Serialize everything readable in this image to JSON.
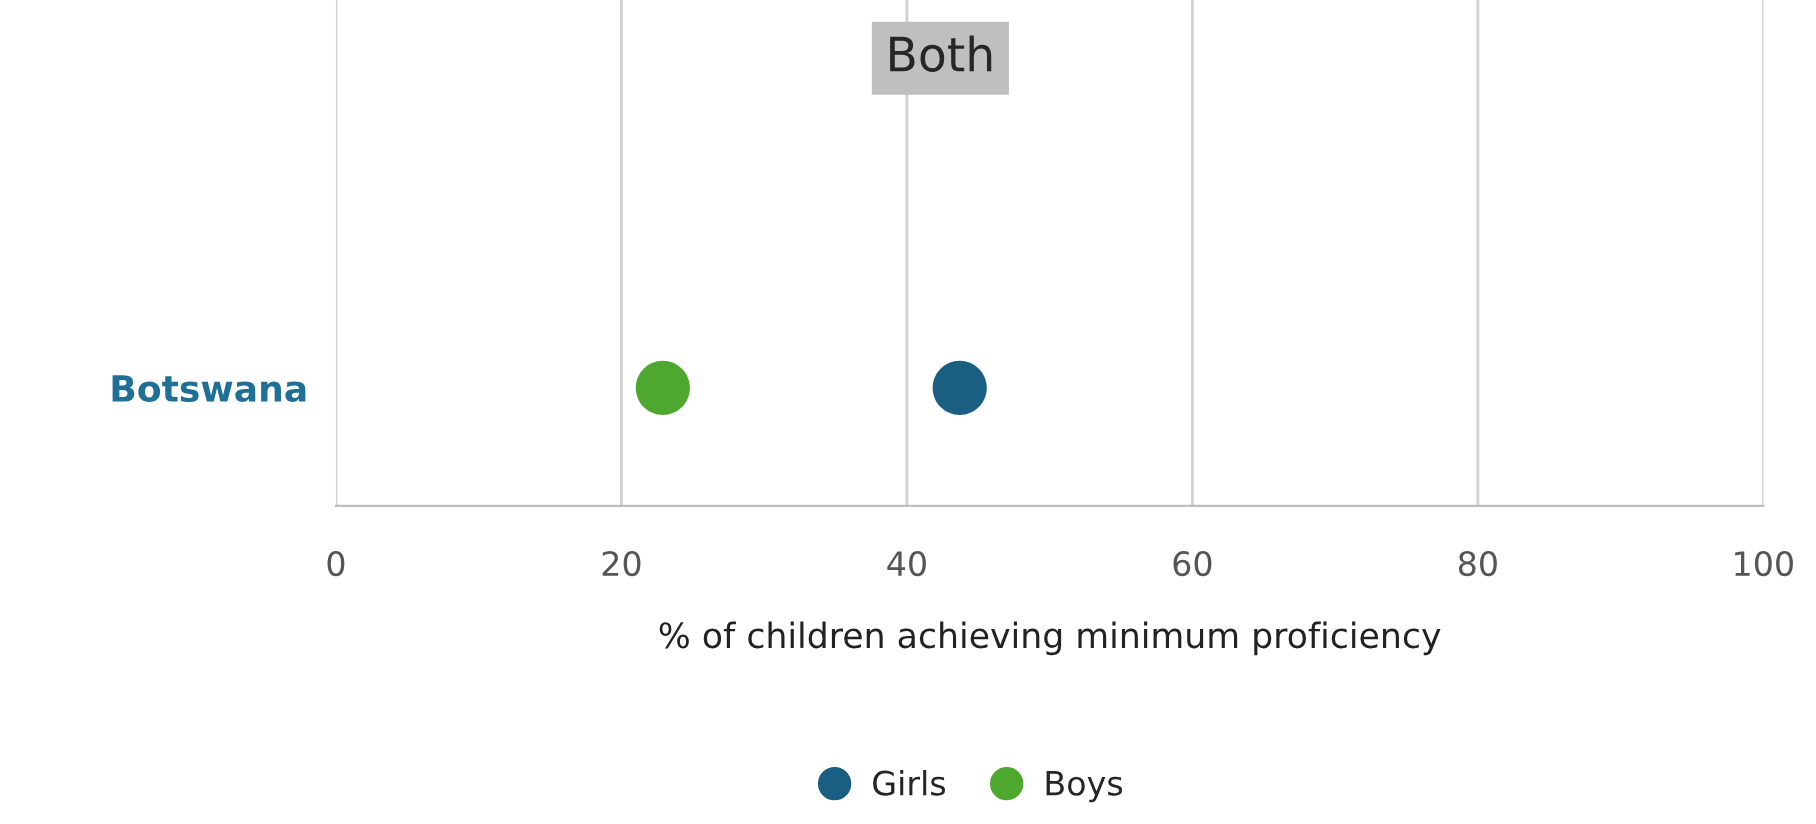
{
  "chart_data": {
    "type": "scatter",
    "title": "Both",
    "orientation": "horizontal",
    "categories": [
      "Botswana"
    ],
    "series": [
      {
        "name": "Girls",
        "color": "#1a5f82",
        "values": [
          43.7
        ]
      },
      {
        "name": "Boys",
        "color": "#4ea72e",
        "values": [
          22.9
        ]
      }
    ],
    "xlim": [
      0,
      100
    ],
    "xticks": [
      0,
      20,
      40,
      60,
      80,
      100
    ],
    "xlabel": "% of children achieving minimum proficiency",
    "grid": "x",
    "legend": "bottom",
    "marker": "circle"
  }
}
